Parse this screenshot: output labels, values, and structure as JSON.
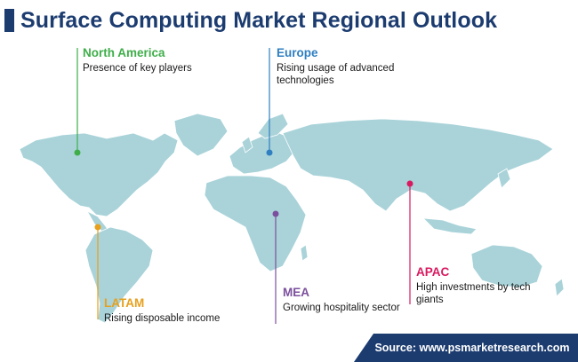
{
  "title": "Surface Computing Market Regional Outlook",
  "regions": {
    "north_america": {
      "name": "North America",
      "desc": "Presence of key players",
      "color": "#3fae49"
    },
    "europe": {
      "name": "Europe",
      "desc": "Rising usage of advanced technologies",
      "color": "#2f7fc1"
    },
    "latam": {
      "name": "LATAM",
      "desc": "Rising disposable income",
      "color": "#e6a01e"
    },
    "mea": {
      "name": "MEA",
      "desc": "Growing hospitality sector",
      "color": "#7b4f9d"
    },
    "apac": {
      "name": "APAC",
      "desc": "High investments by tech giants",
      "color": "#d81b60"
    }
  },
  "source": "Source: www.psmarketresearch.com",
  "map_color": "#a9d3d9"
}
